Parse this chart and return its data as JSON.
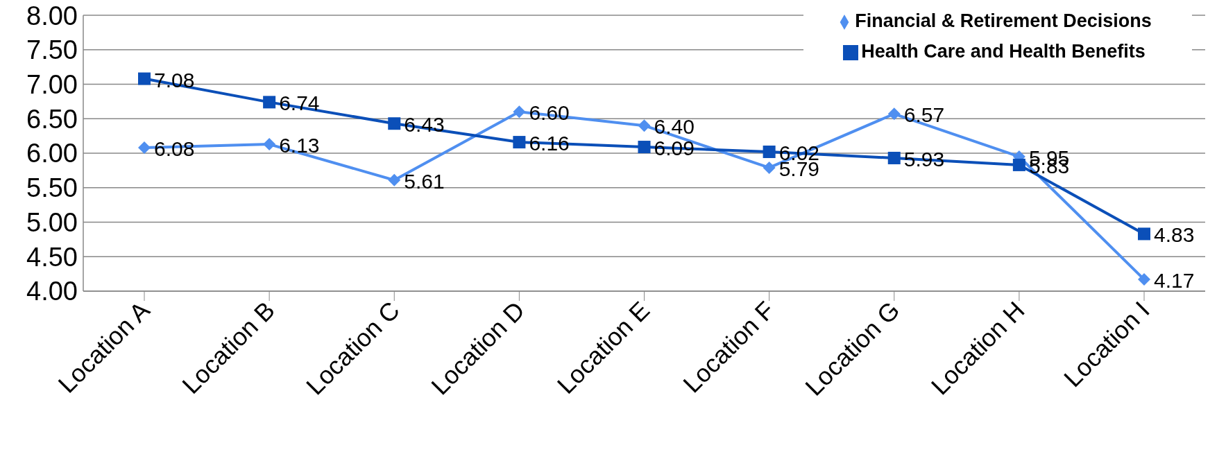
{
  "chart_data": {
    "type": "line",
    "categories": [
      "Location A",
      "Location B",
      "Location C",
      "Location D",
      "Location E",
      "Location F",
      "Location G",
      "Location H",
      "Location I"
    ],
    "series": [
      {
        "name": "Financial & Retirement Decisions",
        "color": "#4f8ff0",
        "marker": "diamond",
        "values": [
          6.08,
          6.13,
          5.61,
          6.6,
          6.4,
          5.79,
          6.57,
          5.95,
          4.17
        ],
        "value_labels": [
          "6.08",
          "6.13",
          "5.61",
          "6.60",
          "6.40",
          "5.79",
          "6.57",
          "5.95",
          "4.17"
        ]
      },
      {
        "name": "Health Care and Health Benefits",
        "color": "#0b4fb8",
        "marker": "square",
        "values": [
          7.08,
          6.74,
          6.43,
          6.16,
          6.09,
          6.02,
          5.93,
          5.83,
          4.83
        ],
        "value_labels": [
          "7.08",
          "6.74",
          "6.43",
          "6.16",
          "6.09",
          "6.02",
          "5.93",
          "5.83",
          "4.83"
        ]
      }
    ],
    "ylim": [
      4,
      8
    ],
    "yticks": [
      {
        "value": 4,
        "label": "4.00"
      },
      {
        "value": 4.5,
        "label": "4.50"
      },
      {
        "value": 5,
        "label": "5.00"
      },
      {
        "value": 5.5,
        "label": "5.50"
      },
      {
        "value": 6,
        "label": "6.00"
      },
      {
        "value": 6.5,
        "label": "6.50"
      },
      {
        "value": 7,
        "label": "7.00"
      },
      {
        "value": 7.5,
        "label": "7.50"
      },
      {
        "value": 8,
        "label": "8.00"
      }
    ],
    "grid": "y",
    "legend": "top right",
    "line_style": "solid"
  }
}
